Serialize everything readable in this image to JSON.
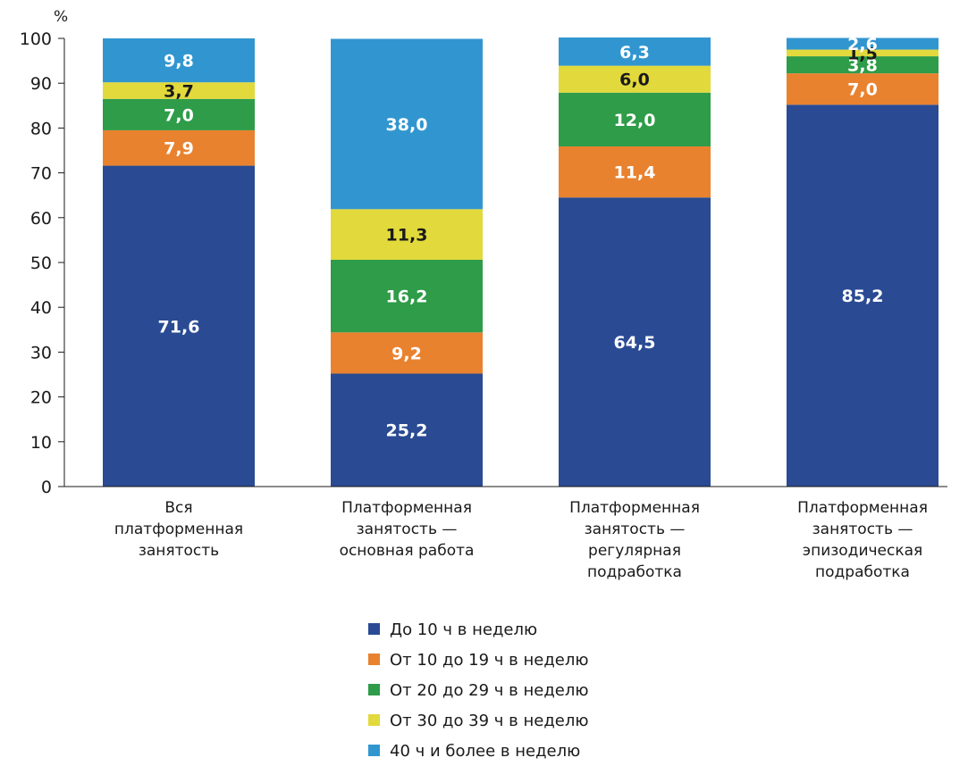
{
  "chart_data": {
    "type": "bar",
    "stacked": true,
    "unit_label": "%",
    "ylim": [
      0,
      100
    ],
    "yticks": [
      0,
      10,
      20,
      30,
      40,
      50,
      60,
      70,
      80,
      90,
      100
    ],
    "grid": false,
    "legend_position": "bottom",
    "categories": [
      [
        "Вся",
        "платформенная",
        "занятость"
      ],
      [
        "Платформенная",
        "занятость —",
        "основная работа"
      ],
      [
        "Платформенная",
        "занятость —",
        "регулярная",
        "подработка"
      ],
      [
        "Платформенная",
        "занятость —",
        "эпизодическая",
        "подработка"
      ]
    ],
    "series": [
      {
        "name": "До 10 ч в неделю",
        "color": "#2a4b93",
        "label_color": "#ffffff",
        "values": [
          71.6,
          25.2,
          64.5,
          85.2
        ],
        "labels": [
          "71,6",
          "25,2",
          "64,5",
          "85,2"
        ]
      },
      {
        "name": "От 10 до 19 ч в неделю",
        "color": "#e9822f",
        "label_color": "#ffffff",
        "values": [
          7.9,
          9.2,
          11.4,
          7.0
        ],
        "labels": [
          "7,9",
          "9,2",
          "11,4",
          "7,0"
        ]
      },
      {
        "name": "От 20 до 29 ч в неделю",
        "color": "#2e9c48",
        "label_color": "#ffffff",
        "values": [
          7.0,
          16.2,
          12.0,
          3.8
        ],
        "labels": [
          "7,0",
          "16,2",
          "12,0",
          "3,8"
        ]
      },
      {
        "name": "От 30 до 39 ч в неделю",
        "color": "#e2d93c",
        "label_color": "#1a1a1a",
        "values": [
          3.7,
          11.3,
          6.0,
          1.5
        ],
        "labels": [
          "3,7",
          "11,3",
          "6,0",
          "1,5"
        ]
      },
      {
        "name": "40 ч и более в неделю",
        "color": "#3196d0",
        "label_color": "#ffffff",
        "values": [
          9.8,
          38.0,
          6.3,
          2.6
        ],
        "labels": [
          "9,8",
          "38,0",
          "6,3",
          "2,6"
        ]
      }
    ]
  }
}
